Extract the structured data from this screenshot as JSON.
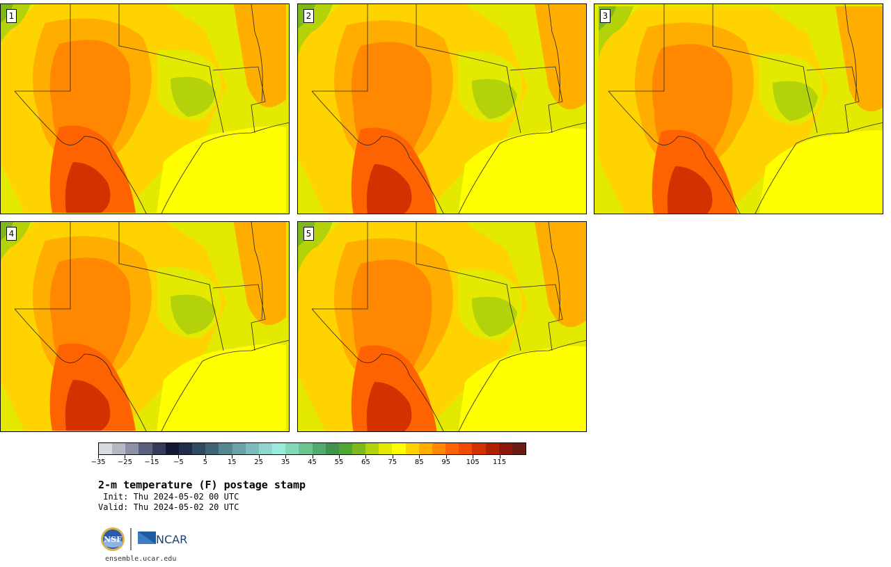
{
  "panels": [
    {
      "label": "1"
    },
    {
      "label": "2"
    },
    {
      "label": "3"
    },
    {
      "label": "4"
    },
    {
      "label": "5"
    }
  ],
  "colorbar": {
    "colors": [
      "#d8dbe1",
      "#b4b7c4",
      "#8d91a6",
      "#5b607d",
      "#343b5b",
      "#101a35",
      "#1e2d4b",
      "#2d4a60",
      "#3f6475",
      "#56878f",
      "#6aa2a6",
      "#7cbcbc",
      "#8fd5d0",
      "#9aeade",
      "#85d8b6",
      "#6cc38f",
      "#52ab6d",
      "#3e944d",
      "#4fa631",
      "#7eb81a",
      "#b3d20a",
      "#e3ea00",
      "#ffff00",
      "#ffd300",
      "#ffae00",
      "#ff8800",
      "#ff6200",
      "#f24a00",
      "#d33100",
      "#af2000",
      "#8b170a",
      "#6a1a10"
    ],
    "ticks": [
      "−35",
      "−25",
      "−15",
      "−5",
      "5",
      "15",
      "25",
      "35",
      "45",
      "55",
      "65",
      "75",
      "85",
      "95",
      "105",
      "115"
    ]
  },
  "title": "2-m temperature (F) postage stamp",
  "init": " Init: Thu 2024-05-02 00 UTC",
  "valid": "Valid: Thu 2024-05-02 20 UTC",
  "logos": {
    "nsf": "NSF",
    "ncar": "NCAR"
  },
  "site": "ensemble.ucar.edu"
}
